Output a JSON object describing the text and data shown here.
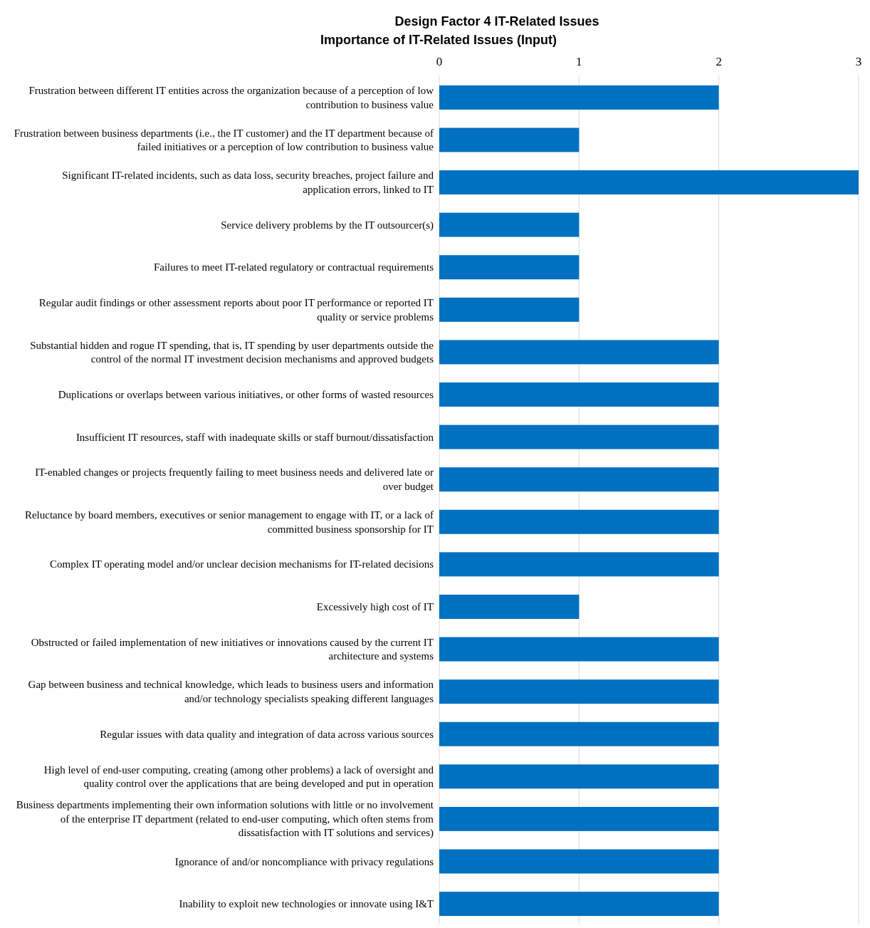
{
  "chart_data": {
    "type": "bar",
    "orientation": "horizontal",
    "title": "Design Factor 4 IT-Related Issues",
    "subtitle": "Importance of IT-Related Issues (Input)",
    "categories": [
      "Frustration between different IT entities across the organization because of a perception of low contribution to business value",
      "Frustration between business departments (i.e., the IT customer) and the IT department because of failed initiatives or a perception of low contribution to business value",
      "Significant IT-related incidents, such as data loss, security breaches, project failure and application errors, linked to IT",
      "Service delivery problems by the IT outsourcer(s)",
      "Failures to meet IT-related regulatory or contractual requirements",
      "Regular audit findings or other assessment reports about poor IT performance or reported IT quality or service problems",
      "Substantial hidden and rogue IT spending, that is, IT spending by user departments outside the control of the normal IT investment decision mechanisms and approved budgets",
      "Duplications or overlaps between various initiatives, or other forms of wasted resources",
      "Insufficient IT resources, staff with inadequate skills or staff burnout/dissatisfaction",
      "IT-enabled changes or projects frequently failing to meet business needs and delivered late or over budget",
      "Reluctance by board members, executives or senior management to engage with IT, or a lack of committed business sponsorship for IT",
      "Complex IT operating model and/or unclear decision mechanisms for IT-related decisions",
      "Excessively high cost of IT",
      "Obstructed or failed implementation of new initiatives or innovations caused by the current IT architecture and systems",
      "Gap between business and technical knowledge, which leads to business users and information and/or technology specialists speaking different languages",
      "Regular issues with data quality and integration of data across various sources",
      "High level of end-user computing, creating (among other problems) a lack of oversight and quality control over the applications that are being developed and put in operation",
      "Business departments implementing their own information solutions with little or no involvement of the enterprise IT department (related to end-user computing, which often stems from dissatisfaction with IT solutions and services)",
      "Ignorance of and/or noncompliance with privacy regulations",
      "Inability to exploit new technologies or innovate using I&T"
    ],
    "values": [
      2,
      1,
      3,
      1,
      1,
      1,
      2,
      2,
      2,
      2,
      2,
      2,
      1,
      2,
      2,
      2,
      2,
      2,
      2,
      2
    ],
    "color": "#0070c0",
    "xlim": [
      0,
      3
    ],
    "xticks": [
      0,
      1,
      2,
      3
    ],
    "grid": "x"
  }
}
